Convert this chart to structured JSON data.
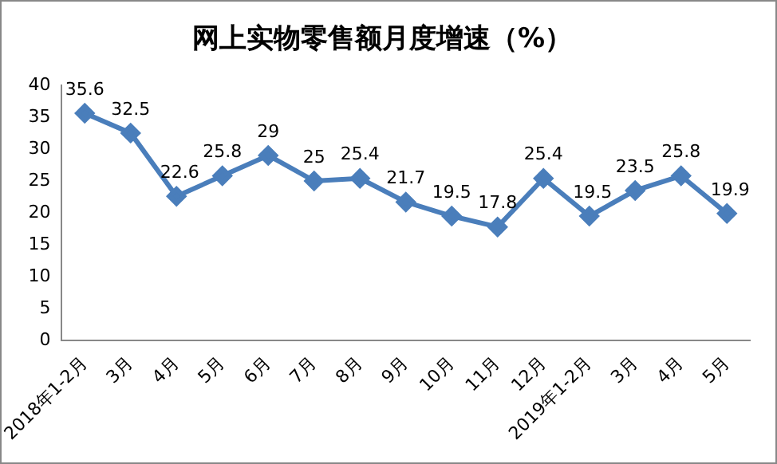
{
  "chart_data": {
    "type": "line",
    "title": "网上实物零售额月度增速（%）",
    "categories": [
      "2018年1-2月",
      "3月",
      "4月",
      "5月",
      "6月",
      "7月",
      "8月",
      "9月",
      "10月",
      "11月",
      "12月",
      "2019年1-2月",
      "3月",
      "4月",
      "5月"
    ],
    "series": [
      {
        "color": "#4a7ebb",
        "values": [
          35.6,
          32.5,
          22.6,
          25.8,
          29,
          25,
          25.4,
          21.7,
          19.5,
          17.8,
          25.4,
          19.5,
          23.5,
          25.8,
          19.9
        ]
      }
    ],
    "ylim": [
      0,
      40
    ],
    "yticks": [
      0,
      5,
      10,
      15,
      20,
      25,
      30,
      35,
      40
    ],
    "grid": false,
    "legend": false,
    "marker": "diamond",
    "line_style": "solid",
    "data_labels": true
  }
}
